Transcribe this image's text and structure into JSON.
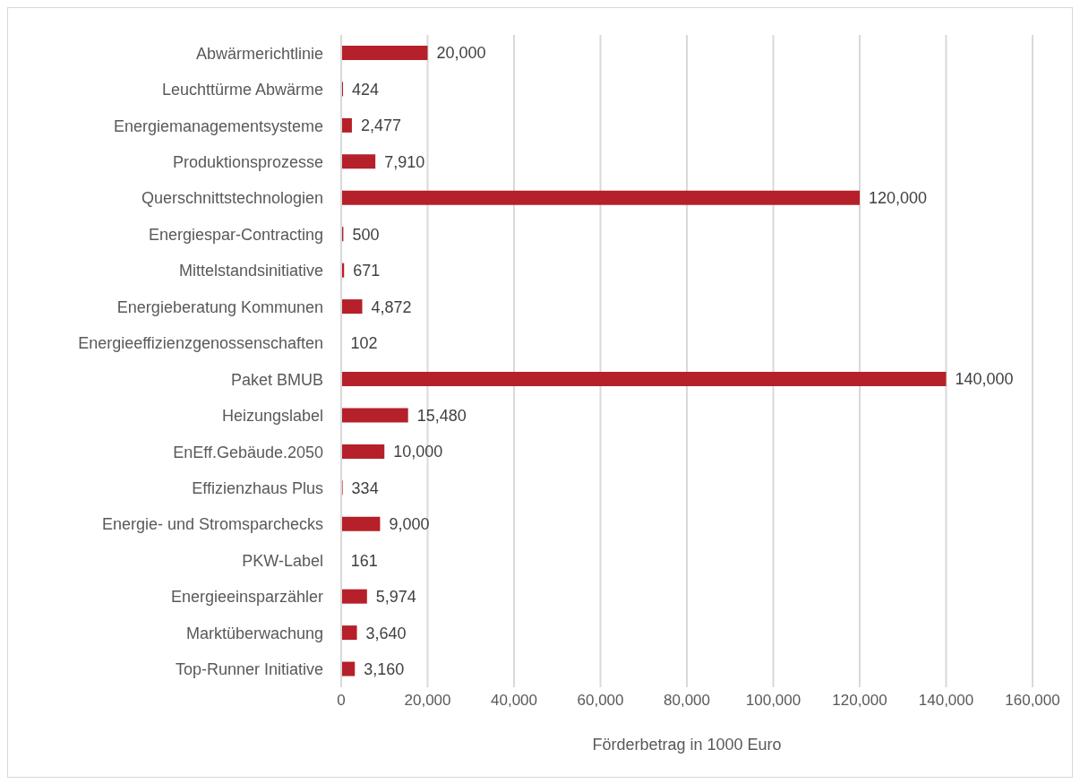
{
  "chart_data": {
    "type": "bar",
    "orientation": "horizontal",
    "xlabel": "Förderbetrag in 1000 Euro",
    "categories": [
      "Abwärmerichtlinie",
      "Leuchttürme Abwärme",
      "Energiemanagementsysteme",
      "Produktionsprozesse",
      "Querschnittstechnologien",
      "Energiespar-Contracting",
      "Mittelstandsinitiative",
      "Energieberatung Kommunen",
      "Energieeffizienzgenossenschaften",
      "Paket BMUB",
      "Heizungslabel",
      "EnEff.Gebäude.2050",
      "Effizienzhaus Plus",
      "Energie- und Stromsparchecks",
      "PKW-Label",
      "Energieeinsparzähler",
      "Marktüberwachung",
      "Top-Runner Initiative"
    ],
    "values": [
      20000,
      424,
      2477,
      7910,
      120000,
      500,
      671,
      4872,
      102,
      140000,
      15480,
      10000,
      334,
      9000,
      161,
      5974,
      3640,
      3160
    ],
    "value_labels": [
      "20,000",
      "424",
      "2,477",
      "7,910",
      "120,000",
      "500",
      "671",
      "4,872",
      "102",
      "140,000",
      "15,480",
      "10,000",
      "334",
      "9,000",
      "161",
      "5,974",
      "3,640",
      "3,160"
    ],
    "color": "#b5202a",
    "xlim": [
      0,
      160000
    ],
    "xticks": [
      {
        "value": 0,
        "label": "0"
      },
      {
        "value": 20000,
        "label": "20,000"
      },
      {
        "value": 40000,
        "label": "40,000"
      },
      {
        "value": 60000,
        "label": "60,000"
      },
      {
        "value": 80000,
        "label": "80,000"
      },
      {
        "value": 100000,
        "label": "100,000"
      },
      {
        "value": 120000,
        "label": "120,000"
      },
      {
        "value": 140000,
        "label": "140,000"
      },
      {
        "value": 160000,
        "label": "160,000"
      }
    ],
    "grid": "x"
  }
}
